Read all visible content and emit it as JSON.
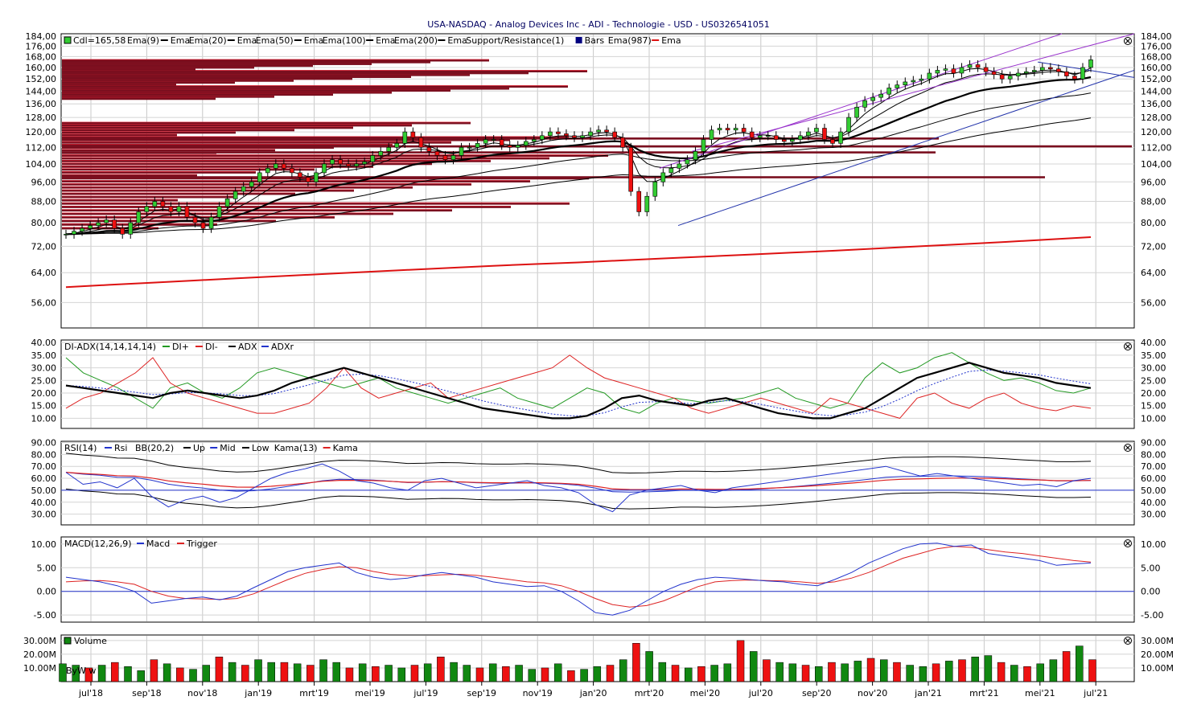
{
  "title": "USA-NASDAQ - Analog Devices Inc - ADI - Technologie - USD - US0326541051",
  "colors": {
    "up_candle": "#33cc33",
    "down_candle": "#ee1111",
    "ema_fast": "#000000",
    "ema_slow": "#dd1111",
    "channel_purple": "#9933cc",
    "channel_blue": "#2233aa",
    "sr_bar": "#7a0f1f",
    "sr_bar_edge": "#ee2233",
    "di_plus": "#229922",
    "di_minus": "#dd2222",
    "adx": "#000000",
    "adxr": "#2233cc",
    "rsi": "#2233cc",
    "kama": "#dd2222",
    "macd": "#2233cc",
    "trigger": "#dd2222",
    "vol_up": "#118811",
    "vol_down": "#ee1111"
  },
  "x_axis": {
    "labels": [
      "jul'18",
      "sep'18",
      "nov'18",
      "jan'19",
      "mrt'19",
      "mei'19",
      "jul'19",
      "sep'19",
      "nov'19",
      "jan'20",
      "mrt'20",
      "mei'20",
      "jul'20",
      "sep'20",
      "nov'20",
      "jan'21",
      "mrt'21",
      "mei'21",
      "jul'21"
    ]
  },
  "panels": {
    "price": {
      "legend": [
        {
          "swatch": "candle",
          "label": "Cdl=165,58"
        },
        {
          "swatch": "none",
          "label": "Ema(9)"
        },
        {
          "swatch": "line-black",
          "label": "Ema"
        },
        {
          "swatch": "none",
          "label": "Ema(20)"
        },
        {
          "swatch": "line-black",
          "label": "Ema"
        },
        {
          "swatch": "none",
          "label": "Ema(50)"
        },
        {
          "swatch": "line-black",
          "label": "Ema"
        },
        {
          "swatch": "none",
          "label": "Ema(100)"
        },
        {
          "swatch": "line-black",
          "label": "Ema"
        },
        {
          "swatch": "none",
          "label": "Ema(200)"
        },
        {
          "swatch": "line-black",
          "label": "Ema"
        },
        {
          "swatch": "none",
          "label": "Support/Resistance(1)"
        },
        {
          "swatch": "box-navy",
          "label": "Bars"
        },
        {
          "swatch": "none",
          "label": "Ema(987)"
        },
        {
          "swatch": "line-red",
          "label": "Ema"
        }
      ],
      "ticks": [
        "184,00",
        "176,00",
        "168,00",
        "160,00",
        "152,00",
        "144,00",
        "136,00",
        "128,00",
        "120,00",
        "112,00",
        "104,00",
        "96,00",
        "88,00",
        "80,00",
        "72,00",
        "64,00",
        "56,00"
      ],
      "tick_values": [
        184,
        176,
        168,
        160,
        152,
        144,
        136,
        128,
        120,
        112,
        104,
        96,
        88,
        80,
        72,
        64,
        56
      ],
      "log_range": [
        50,
        186
      ]
    },
    "adx": {
      "legend": "DI-ADX(14,14,14,14)",
      "series_labels": [
        "DI+",
        "DI-",
        "ADX",
        "ADXr"
      ],
      "ticks": [
        "40.00",
        "35.00",
        "30.00",
        "25.00",
        "20.00",
        "15.00",
        "10.00"
      ],
      "tick_values": [
        40,
        35,
        30,
        25,
        20,
        15,
        10
      ],
      "range": [
        6,
        41
      ]
    },
    "rsi": {
      "legend_a": "RSI(14)",
      "legend_b": "Rsi",
      "legend_c": "BB(20,2)",
      "series_labels": [
        "Up",
        "Mid",
        "Low",
        "Kama(13)",
        "Kama"
      ],
      "ticks": [
        "90.00",
        "80.00",
        "70.00",
        "60.00",
        "50.00",
        "40.00",
        "30.00"
      ],
      "tick_values": [
        90,
        80,
        70,
        60,
        50,
        40,
        30
      ],
      "range": [
        21,
        91
      ]
    },
    "macd": {
      "legend": "MACD(12,26,9)",
      "series_labels": [
        "Macd",
        "Trigger"
      ],
      "ticks": [
        "10.00",
        "5.00",
        "0.00",
        "-5.00"
      ],
      "tick_values": [
        10,
        5,
        0,
        -5
      ],
      "range": [
        -6.5,
        11.5
      ]
    },
    "volume": {
      "legend": "Volume",
      "ticks": [
        "30.00M",
        "20.00M",
        "10.00M"
      ],
      "tick_values": [
        30,
        20,
        10
      ],
      "range": [
        0,
        34
      ]
    }
  },
  "watermark": "ByW w",
  "chart_data": {
    "type": "candlestick",
    "period": "weekly",
    "date_range": [
      "jun'18",
      "jun'21"
    ],
    "last_close": 165.58,
    "price_close": [
      76,
      77,
      78,
      79,
      80,
      81,
      78,
      76,
      80,
      84,
      86,
      88,
      86,
      84,
      86,
      82,
      80,
      78,
      82,
      86,
      89,
      92,
      94,
      96,
      100,
      102,
      104,
      102,
      100,
      98,
      96,
      100,
      104,
      106,
      104,
      103,
      104,
      105,
      108,
      110,
      112,
      114,
      120,
      117,
      112,
      110,
      108,
      106,
      108,
      112,
      112,
      114,
      116,
      116,
      113,
      112,
      113,
      115,
      116,
      118,
      120,
      119,
      118,
      117,
      118,
      120,
      121,
      120,
      117,
      112,
      92,
      84,
      90,
      96,
      100,
      102,
      104,
      106,
      110,
      116,
      121,
      122,
      121,
      122,
      120,
      117,
      118,
      118,
      116,
      115,
      116,
      118,
      120,
      122,
      116,
      114,
      120,
      128,
      134,
      138,
      140,
      142,
      146,
      148,
      150,
      151,
      152,
      156,
      158,
      159,
      156,
      160,
      162,
      160,
      157,
      155,
      152,
      154,
      156,
      157,
      158,
      160,
      159,
      157,
      154,
      152,
      160,
      165.58
    ],
    "ema987": [
      60,
      60.6,
      61.2,
      61.8,
      62.4,
      63,
      63.6,
      64.2,
      64.8,
      65.4,
      66,
      66.5,
      67,
      67.6,
      68.2,
      68.8,
      69.4,
      70,
      70.6,
      71.3,
      72,
      72.7,
      73.4,
      74.2,
      75
    ],
    "adx": [
      23,
      22,
      21,
      20,
      19,
      18,
      20,
      21,
      20,
      19,
      18,
      19,
      21,
      24,
      26,
      28,
      30,
      28,
      26,
      24,
      22,
      20,
      18,
      16,
      14,
      13,
      12,
      11,
      10,
      10,
      11,
      14,
      18,
      19,
      17,
      16,
      15,
      17,
      18,
      16,
      14,
      12,
      11,
      10,
      10,
      12,
      14,
      18,
      22,
      26,
      28,
      30,
      32,
      30,
      28,
      27,
      26,
      24,
      23,
      22
    ],
    "di_plus": [
      34,
      28,
      25,
      22,
      18,
      14,
      22,
      24,
      20,
      18,
      22,
      28,
      30,
      28,
      26,
      24,
      22,
      24,
      26,
      22,
      20,
      18,
      16,
      18,
      20,
      22,
      18,
      16,
      14,
      18,
      22,
      20,
      14,
      12,
      16,
      18,
      17,
      16,
      17,
      18,
      20,
      22,
      18,
      16,
      14,
      16,
      26,
      32,
      28,
      30,
      34,
      36,
      32,
      28,
      25,
      26,
      24,
      21,
      20,
      22
    ],
    "di_minus": [
      14,
      18,
      20,
      24,
      28,
      34,
      24,
      20,
      18,
      16,
      14,
      12,
      12,
      14,
      16,
      22,
      30,
      22,
      18,
      20,
      22,
      24,
      18,
      20,
      22,
      24,
      26,
      28,
      30,
      35,
      30,
      26,
      24,
      22,
      20,
      18,
      14,
      12,
      14,
      16,
      18,
      16,
      14,
      12,
      18,
      16,
      14,
      12,
      10,
      18,
      20,
      16,
      14,
      18,
      20,
      16,
      14,
      13,
      15,
      14
    ],
    "rsi": [
      65,
      55,
      57,
      52,
      60,
      45,
      36,
      42,
      45,
      40,
      44,
      52,
      60,
      65,
      68,
      72,
      66,
      58,
      56,
      52,
      50,
      58,
      60,
      56,
      52,
      54,
      56,
      58,
      54,
      52,
      48,
      38,
      32,
      46,
      50,
      52,
      54,
      50,
      48,
      52,
      54,
      56,
      58,
      60,
      62,
      64,
      66,
      68,
      70,
      66,
      62,
      64,
      62,
      60,
      58,
      56,
      54,
      55,
      53,
      58,
      60
    ],
    "macd": [
      3,
      2.5,
      2,
      1.2,
      0,
      -2.5,
      -2,
      -1.5,
      -1.2,
      -1.8,
      -1,
      0.8,
      2.5,
      4.2,
      5,
      5.5,
      6,
      4,
      3,
      2.5,
      2.8,
      3.5,
      4,
      3.5,
      3,
      2,
      1.5,
      1,
      1.2,
      0,
      -2,
      -4.5,
      -5,
      -4,
      -2,
      0,
      1.5,
      2.5,
      3,
      2.8,
      2.5,
      2.2,
      2,
      1.5,
      1.2,
      2.5,
      4,
      6,
      7.5,
      9,
      10,
      10.2,
      9.5,
      9.8,
      8,
      7.5,
      7,
      6.5,
      5.5,
      5.8,
      6
    ],
    "trigger": [
      2,
      2.2,
      2.3,
      2,
      1.5,
      0,
      -1,
      -1.5,
      -1.6,
      -1.7,
      -1.5,
      -0.5,
      1,
      2.5,
      3.8,
      4.6,
      5.2,
      5,
      4.2,
      3.6,
      3.3,
      3.3,
      3.5,
      3.6,
      3.4,
      3,
      2.5,
      2,
      1.8,
      1.2,
      0,
      -1.5,
      -2.8,
      -3.3,
      -3,
      -2,
      -0.5,
      1,
      2,
      2.3,
      2.4,
      2.3,
      2.2,
      2,
      1.7,
      2,
      2.8,
      4,
      5.5,
      7,
      8,
      9,
      9.5,
      9.3,
      8.8,
      8.3,
      8,
      7.5,
      7,
      6.5,
      6.2
    ],
    "volume": [
      13,
      12,
      10,
      12,
      14,
      11,
      8,
      16,
      13,
      10,
      9,
      12,
      18,
      14,
      12,
      16,
      14,
      14,
      13,
      12,
      16,
      14,
      10,
      13,
      11,
      12,
      10,
      12,
      13,
      18,
      14,
      12,
      10,
      13,
      11,
      12,
      9,
      10,
      13,
      8,
      9,
      11,
      12,
      16,
      28,
      22,
      14,
      12,
      10,
      11,
      12,
      13,
      30,
      22,
      16,
      14,
      13,
      12,
      11,
      14,
      13,
      15,
      17,
      16,
      14,
      12,
      11,
      13,
      15,
      16,
      18,
      19,
      14,
      12,
      11,
      13,
      16,
      22,
      26,
      16
    ]
  }
}
